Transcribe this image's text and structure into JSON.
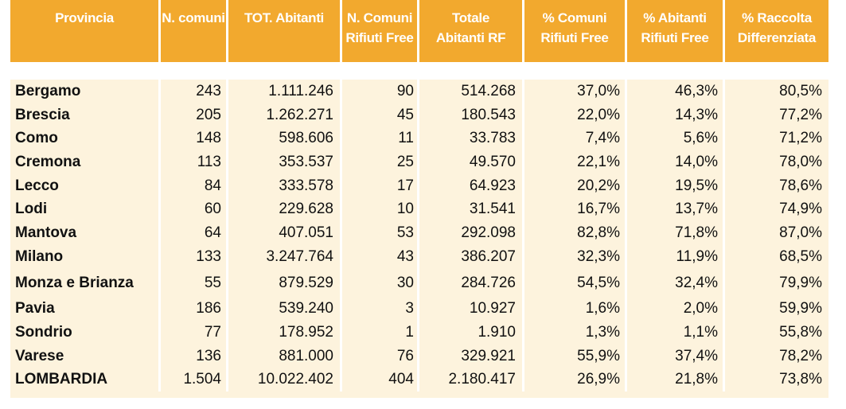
{
  "table": {
    "headers": [
      [
        "Provincia"
      ],
      [
        "N. comuni"
      ],
      [
        "TOT. Abitanti"
      ],
      [
        "N. Comuni",
        "Rifiuti Free"
      ],
      [
        "Totale",
        "Abitanti RF"
      ],
      [
        "% Comuni",
        "Rifiuti Free"
      ],
      [
        "% Abitanti",
        "Rifiuti Free"
      ],
      [
        "% Raccolta",
        "Differenziata"
      ]
    ],
    "rows": [
      [
        "Bergamo",
        "243",
        "1.111.246",
        "90",
        "514.268",
        "37,0%",
        "46,3%",
        "80,5%"
      ],
      [
        "Brescia",
        "205",
        "1.262.271",
        "45",
        "180.543",
        "22,0%",
        "14,3%",
        "77,2%"
      ],
      [
        "Como",
        "148",
        "598.606",
        "11",
        "33.783",
        "7,4%",
        "5,6%",
        "71,2%"
      ],
      [
        "Cremona",
        "113",
        "353.537",
        "25",
        "49.570",
        "22,1%",
        "14,0%",
        "78,0%"
      ],
      [
        "Lecco",
        "84",
        "333.578",
        "17",
        "64.923",
        "20,2%",
        "19,5%",
        "78,6%"
      ],
      [
        "Lodi",
        "60",
        "229.628",
        "10",
        "31.541",
        "16,7%",
        "13,7%",
        "74,9%"
      ],
      [
        "Mantova",
        "64",
        "407.051",
        "53",
        "292.098",
        "82,8%",
        "71,8%",
        "87,0%"
      ],
      [
        "Milano",
        "133",
        "3.247.764",
        "43",
        "386.207",
        "32,3%",
        "11,9%",
        "68,5%"
      ],
      [
        "Monza e Brianza",
        "55",
        "879.529",
        "30",
        "284.726",
        "54,5%",
        "32,4%",
        "79,9%"
      ],
      [
        "Pavia",
        "186",
        "539.240",
        "3",
        "10.927",
        "1,6%",
        "2,0%",
        "59,9%"
      ],
      [
        "Sondrio",
        "77",
        "178.952",
        "1",
        "1.910",
        "1,3%",
        "1,1%",
        "55,8%"
      ],
      [
        "Varese",
        "136",
        "881.000",
        "76",
        "329.921",
        "55,9%",
        "37,4%",
        "78,2%"
      ],
      [
        "LOMBARDIA",
        "1.504",
        "10.022.402",
        "404",
        "2.180.417",
        "26,9%",
        "21,8%",
        "73,8%"
      ]
    ]
  },
  "colors": {
    "header_bg": "#f2a92e",
    "header_text": "#ffffff",
    "row_bg": "#fdf3dd",
    "text": "#111111"
  }
}
